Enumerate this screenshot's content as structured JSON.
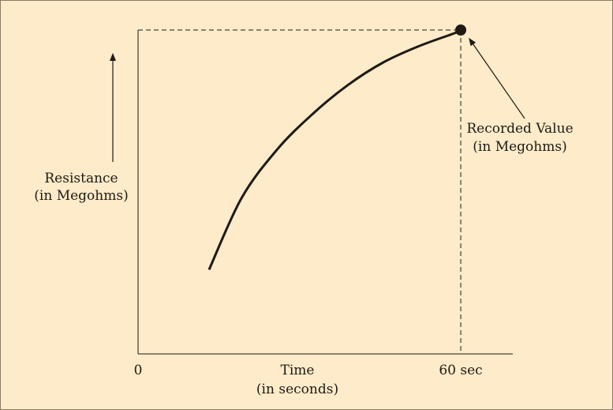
{
  "colors": {
    "background": "#fdebc9",
    "ink": "#1f1a14",
    "border": "#8a7a63"
  },
  "chart_data": {
    "type": "line",
    "title": "",
    "xlabel": [
      "Time",
      "(in seconds)"
    ],
    "ylabel": [
      "Resistance",
      "(in Megohms)"
    ],
    "x_ticks": [
      "0",
      "60 sec"
    ],
    "series": [
      {
        "x": [
          0.22,
          0.32,
          0.43,
          0.54,
          0.65,
          0.76,
          0.87,
          0.98,
          1.0
        ],
        "y": [
          0.26,
          0.48,
          0.63,
          0.74,
          0.83,
          0.9,
          0.95,
          0.99,
          1.0
        ]
      }
    ],
    "marked_point": {
      "x": 1.0,
      "y": 1.0
    },
    "annotation": [
      "Recorded Value",
      "(in Megohms)"
    ],
    "grid": false,
    "legend": "none"
  }
}
